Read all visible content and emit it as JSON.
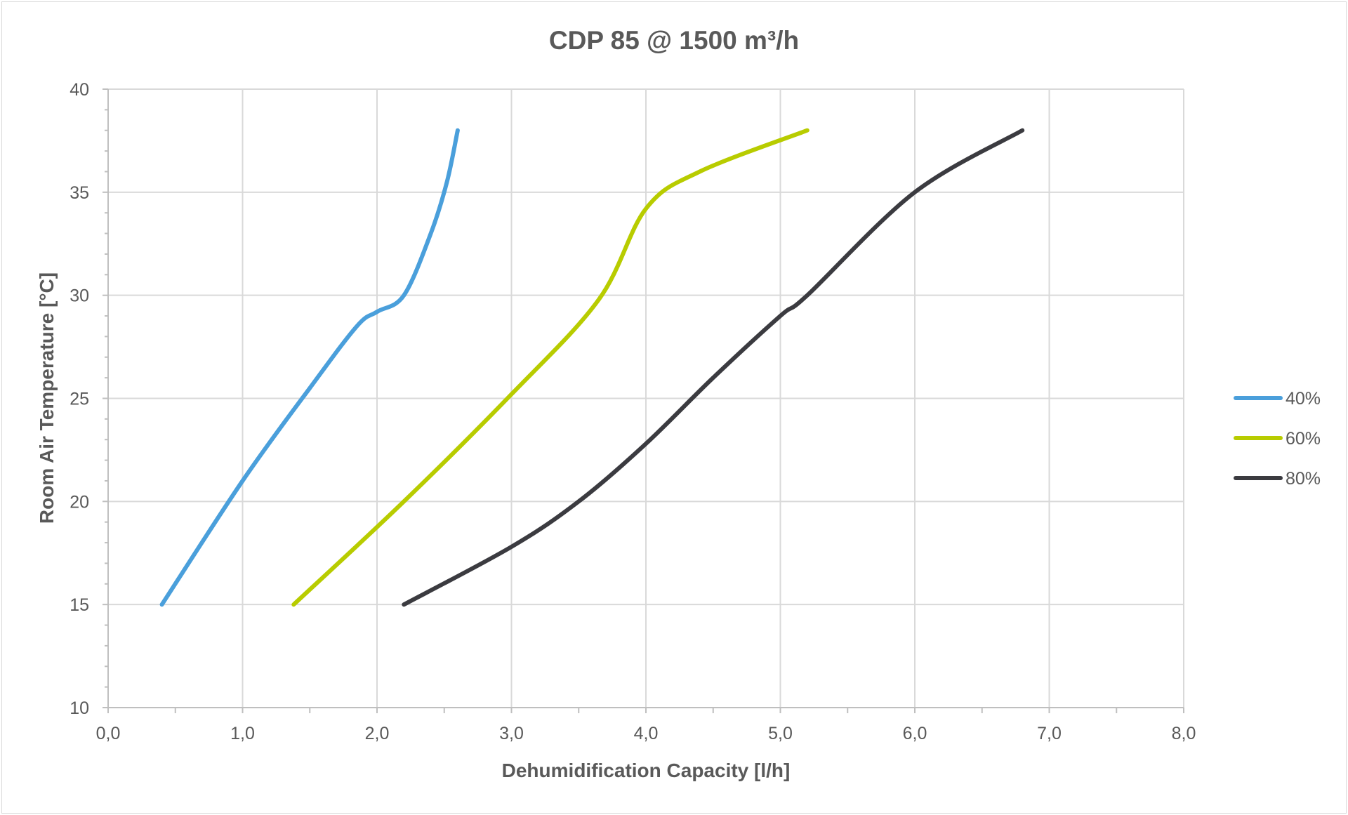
{
  "chart_data": {
    "type": "line",
    "title": "CDP 85 @ 1500 m³/h",
    "xlabel": "Dehumidification Capacity [l/h]",
    "ylabel": "Room Air  Temperature [°C]",
    "xlim": [
      0,
      8
    ],
    "ylim": [
      10,
      40
    ],
    "x_ticks": [
      "0,0",
      "1,0",
      "2,0",
      "3,0",
      "4,0",
      "5,0",
      "6,0",
      "7,0",
      "8,0"
    ],
    "y_ticks": [
      "10",
      "15",
      "20",
      "25",
      "30",
      "35",
      "40"
    ],
    "grid": true,
    "legend_position": "right",
    "series": [
      {
        "name": "40%",
        "color": "#4a9fdb",
        "points": [
          [
            0.4,
            15
          ],
          [
            1.0,
            21
          ],
          [
            1.5,
            25.5
          ],
          [
            1.85,
            28.5
          ],
          [
            2.0,
            29.2
          ],
          [
            2.2,
            30
          ],
          [
            2.4,
            33
          ],
          [
            2.52,
            35.5
          ],
          [
            2.6,
            38
          ]
        ]
      },
      {
        "name": "60%",
        "color": "#b8cc00",
        "points": [
          [
            1.38,
            15
          ],
          [
            2.2,
            20
          ],
          [
            3.0,
            25.2
          ],
          [
            3.65,
            29.8
          ],
          [
            4.0,
            34.2
          ],
          [
            4.4,
            36
          ],
          [
            5.2,
            38
          ]
        ]
      },
      {
        "name": "80%",
        "color": "#3b3b40",
        "points": [
          [
            2.2,
            15
          ],
          [
            3.0,
            17.8
          ],
          [
            3.5,
            20
          ],
          [
            4.0,
            22.8
          ],
          [
            4.5,
            26
          ],
          [
            5.0,
            29
          ],
          [
            5.2,
            30
          ],
          [
            6.0,
            35
          ],
          [
            6.8,
            38
          ]
        ]
      }
    ]
  }
}
